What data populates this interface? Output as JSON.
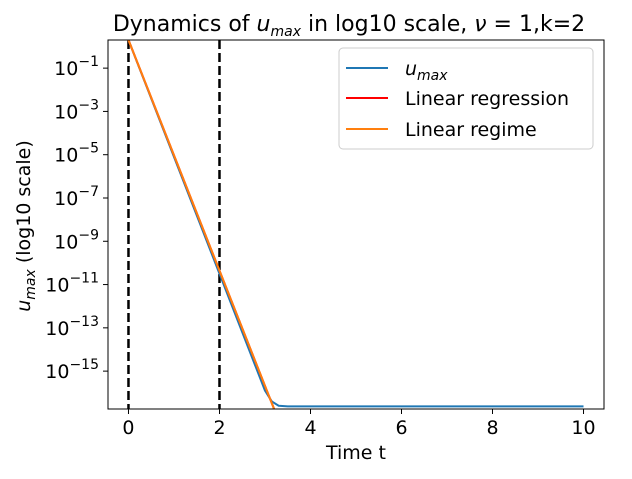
{
  "chart_data": {
    "type": "line",
    "title": {
      "prefix": "Dynamics of ",
      "var": "u",
      "var_sub": "max",
      "suffix": " in log10 scale, ",
      "nu_symbol": "ν",
      "nu_rest": " = 1,k=2"
    },
    "xlabel": "Time t",
    "ylabel": {
      "var": "u",
      "var_sub": "max",
      "rest": " (log10 scale)"
    },
    "xlim": [
      -0.45,
      10.45
    ],
    "ylim_log10": [
      -16.75,
      0.3
    ],
    "yscale": "log",
    "grid": false,
    "legend_position": "top-right",
    "x_ticks": [
      0,
      2,
      4,
      6,
      8,
      10
    ],
    "x_tick_labels": [
      "0",
      "2",
      "4",
      "6",
      "8",
      "10"
    ],
    "y_ticks_exponents": [
      -1,
      -3,
      -5,
      -7,
      -9,
      -11,
      -13,
      -15
    ],
    "y_tick_base": "10",
    "y_tick_exponent_labels": [
      "−1",
      "−3",
      "−5",
      "−7",
      "−9",
      "−11",
      "−13",
      "−15"
    ],
    "vlines": [
      {
        "x": 0,
        "style": "dashed",
        "color": "#000000"
      },
      {
        "x": 2,
        "style": "dashed",
        "color": "#000000"
      }
    ],
    "series": [
      {
        "name": "umax",
        "legend_var": "u",
        "legend_sub": "max",
        "color": "#1f77b4",
        "points": [
          {
            "x": 0.0,
            "log10y": 0.3
          },
          {
            "x": 3.0,
            "log10y": -15.9
          },
          {
            "x": 3.15,
            "log10y": -16.4
          },
          {
            "x": 3.3,
            "log10y": -16.6
          },
          {
            "x": 3.5,
            "log10y": -16.63
          },
          {
            "x": 10.0,
            "log10y": -16.63
          }
        ]
      },
      {
        "name": "Linear regression",
        "color": "#ff0000",
        "points": [
          {
            "x": 0.0,
            "log10y": 0.3
          },
          {
            "x": 3.2,
            "log10y": -16.75
          }
        ]
      },
      {
        "name": "Linear regime",
        "color": "#ff7f0e",
        "points": [
          {
            "x": 0.0,
            "log10y": 0.3
          },
          {
            "x": 3.2,
            "log10y": -16.75
          }
        ]
      }
    ]
  }
}
